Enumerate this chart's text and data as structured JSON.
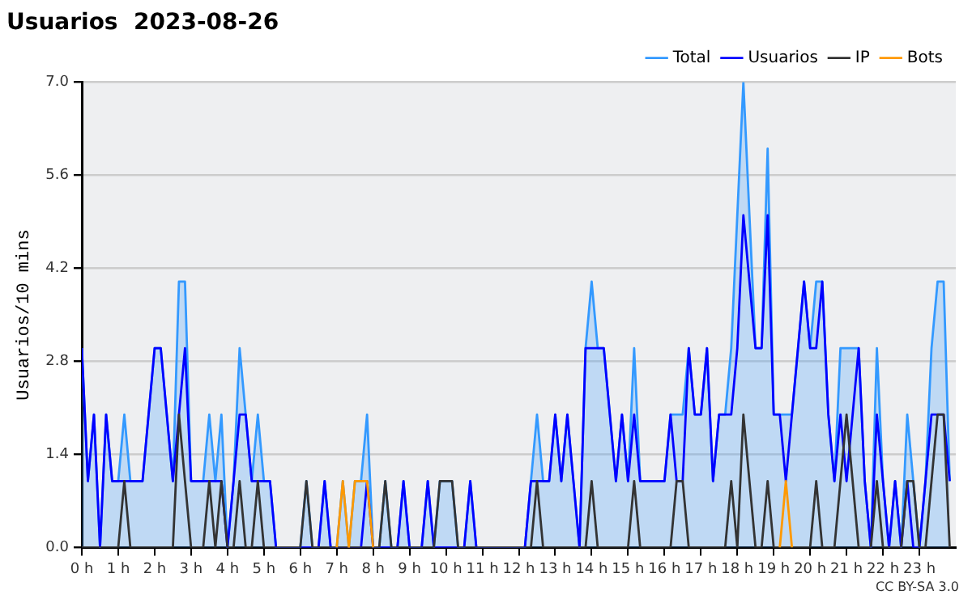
{
  "chart_data": {
    "type": "line",
    "title": "Usuarios  2023-08-26",
    "ylabel": "Usuarios/10 mins",
    "annotations": [
      "CC BY-SA 3.0"
    ],
    "x": [
      0,
      0.167,
      0.333,
      0.5,
      0.667,
      0.833,
      1,
      1.167,
      1.333,
      1.5,
      1.667,
      1.833,
      2,
      2.167,
      2.333,
      2.5,
      2.667,
      2.833,
      3,
      3.167,
      3.333,
      3.5,
      3.667,
      3.833,
      4,
      4.167,
      4.333,
      4.5,
      4.667,
      4.833,
      5,
      5.167,
      5.333,
      5.5,
      5.667,
      5.833,
      6,
      6.167,
      6.333,
      6.5,
      6.667,
      6.833,
      7,
      7.167,
      7.333,
      7.5,
      7.667,
      7.833,
      8,
      8.167,
      8.333,
      8.5,
      8.667,
      8.833,
      9,
      9.167,
      9.333,
      9.5,
      9.667,
      9.833,
      10,
      10.167,
      10.333,
      10.5,
      10.667,
      10.833,
      11,
      11.167,
      11.333,
      11.5,
      11.667,
      11.833,
      12,
      12.167,
      12.333,
      12.5,
      12.667,
      12.833,
      13,
      13.167,
      13.333,
      13.5,
      13.667,
      13.833,
      14,
      14.167,
      14.333,
      14.5,
      14.667,
      14.833,
      15,
      15.167,
      15.333,
      15.5,
      15.667,
      15.833,
      16,
      16.167,
      16.333,
      16.5,
      16.667,
      16.833,
      17,
      17.167,
      17.333,
      17.5,
      17.667,
      17.833,
      18,
      18.167,
      18.333,
      18.5,
      18.667,
      18.833,
      19,
      19.167,
      19.333,
      19.5,
      19.667,
      19.833,
      20,
      20.167,
      20.333,
      20.5,
      20.667,
      20.833,
      21,
      21.167,
      21.333,
      21.5,
      21.667,
      21.833,
      22,
      22.167,
      22.333,
      22.5,
      22.667,
      22.833,
      23,
      23.167,
      23.333,
      23.5,
      23.667,
      23.833
    ],
    "series": [
      {
        "name": "Total",
        "type": "area",
        "color": "#3399ff",
        "values": [
          3,
          1,
          2,
          0,
          2,
          1,
          1,
          2,
          1,
          1,
          1,
          2,
          3,
          3,
          2,
          1,
          4,
          4,
          1,
          1,
          1,
          2,
          1,
          2,
          0,
          1,
          3,
          2,
          1,
          2,
          1,
          1,
          0,
          0,
          0,
          0,
          0,
          1,
          0,
          0,
          1,
          0,
          0,
          1,
          0,
          1,
          1,
          2,
          0,
          0,
          1,
          0,
          0,
          1,
          0,
          0,
          0,
          1,
          0,
          1,
          1,
          1,
          0,
          0,
          1,
          0,
          0,
          0,
          0,
          0,
          0,
          0,
          0,
          0,
          1,
          2,
          1,
          1,
          2,
          1,
          2,
          1,
          0,
          3,
          4,
          3,
          3,
          2,
          1,
          2,
          1,
          3,
          1,
          1,
          1,
          1,
          1,
          2,
          2,
          2,
          3,
          2,
          2,
          3,
          1,
          2,
          2,
          3,
          5,
          7,
          5,
          3,
          3,
          6,
          2,
          2,
          2,
          2,
          3,
          4,
          3,
          4,
          4,
          2,
          1,
          3,
          3,
          3,
          3,
          1,
          0,
          3,
          1,
          0,
          1,
          0,
          2,
          1,
          0,
          1,
          3,
          4,
          4,
          1
        ]
      },
      {
        "name": "Usuarios",
        "type": "line",
        "color": "#0000ff",
        "values": [
          3,
          1,
          2,
          0,
          2,
          1,
          1,
          1,
          1,
          1,
          1,
          2,
          3,
          3,
          2,
          1,
          2,
          3,
          1,
          1,
          1,
          1,
          1,
          1,
          0,
          1,
          2,
          2,
          1,
          1,
          1,
          1,
          0,
          0,
          0,
          0,
          0,
          0,
          0,
          0,
          1,
          0,
          0,
          0,
          0,
          0,
          0,
          1,
          0,
          0,
          0,
          0,
          0,
          1,
          0,
          0,
          0,
          1,
          0,
          0,
          0,
          0,
          0,
          0,
          1,
          0,
          0,
          0,
          0,
          0,
          0,
          0,
          0,
          0,
          1,
          1,
          1,
          1,
          2,
          1,
          2,
          1,
          0,
          3,
          3,
          3,
          3,
          2,
          1,
          2,
          1,
          2,
          1,
          1,
          1,
          1,
          1,
          2,
          1,
          1,
          3,
          2,
          2,
          3,
          1,
          2,
          2,
          2,
          3,
          5,
          4,
          3,
          3,
          5,
          2,
          2,
          1,
          2,
          3,
          4,
          3,
          3,
          4,
          2,
          1,
          2,
          1,
          2,
          3,
          1,
          0,
          2,
          1,
          0,
          1,
          0,
          1,
          0,
          0,
          1,
          2,
          2,
          2,
          1
        ]
      },
      {
        "name": "IP",
        "type": "line",
        "color": "#333333",
        "values": [
          0,
          0,
          0,
          0,
          0,
          0,
          0,
          1,
          0,
          0,
          0,
          0,
          0,
          0,
          0,
          0,
          2,
          1,
          0,
          0,
          0,
          1,
          0,
          1,
          0,
          0,
          1,
          0,
          0,
          1,
          0,
          0,
          0,
          0,
          0,
          0,
          0,
          1,
          0,
          0,
          0,
          0,
          0,
          0,
          0,
          0,
          0,
          0,
          0,
          0,
          1,
          0,
          0,
          0,
          0,
          0,
          0,
          0,
          0,
          1,
          1,
          1,
          0,
          0,
          0,
          0,
          0,
          0,
          0,
          0,
          0,
          0,
          0,
          0,
          0,
          1,
          0,
          0,
          0,
          0,
          0,
          0,
          0,
          0,
          1,
          0,
          0,
          0,
          0,
          0,
          0,
          1,
          0,
          0,
          0,
          0,
          0,
          0,
          1,
          1,
          0,
          0,
          0,
          0,
          0,
          0,
          0,
          1,
          0,
          2,
          1,
          0,
          0,
          1,
          0,
          0,
          0,
          0,
          0,
          0,
          0,
          1,
          0,
          0,
          0,
          1,
          2,
          1,
          0,
          0,
          0,
          1,
          0,
          0,
          0,
          0,
          1,
          1,
          0,
          0,
          1,
          2,
          2,
          0
        ]
      },
      {
        "name": "Bots",
        "type": "line",
        "color": "#ff9900",
        "values": [
          null,
          null,
          null,
          null,
          null,
          null,
          null,
          null,
          null,
          null,
          null,
          null,
          null,
          null,
          null,
          null,
          null,
          null,
          null,
          null,
          null,
          null,
          null,
          null,
          null,
          null,
          null,
          null,
          null,
          null,
          null,
          null,
          null,
          null,
          null,
          null,
          null,
          null,
          null,
          null,
          null,
          null,
          0,
          1,
          0,
          1,
          1,
          1,
          0,
          null,
          null,
          null,
          null,
          null,
          null,
          null,
          null,
          null,
          null,
          null,
          null,
          null,
          null,
          null,
          null,
          null,
          null,
          null,
          null,
          null,
          null,
          null,
          null,
          null,
          null,
          null,
          null,
          null,
          null,
          null,
          null,
          null,
          null,
          null,
          null,
          null,
          null,
          null,
          null,
          null,
          null,
          null,
          null,
          null,
          null,
          null,
          null,
          null,
          null,
          null,
          null,
          null,
          null,
          null,
          null,
          null,
          null,
          null,
          null,
          null,
          null,
          null,
          null,
          null,
          null,
          0,
          1,
          0,
          null,
          null,
          null,
          null,
          null,
          null,
          null,
          null,
          null,
          null,
          null,
          null,
          null,
          null,
          null,
          null,
          null,
          null,
          null,
          null,
          null,
          null,
          null,
          null,
          null,
          null
        ]
      }
    ],
    "xlim": [
      0,
      24
    ],
    "xticks": [
      {
        "value": 0,
        "label": "0 h"
      },
      {
        "value": 1,
        "label": "1 h"
      },
      {
        "value": 2,
        "label": "2 h"
      },
      {
        "value": 3,
        "label": "3 h"
      },
      {
        "value": 4,
        "label": "4 h"
      },
      {
        "value": 5,
        "label": "5 h"
      },
      {
        "value": 6,
        "label": "6 h"
      },
      {
        "value": 7,
        "label": "7 h"
      },
      {
        "value": 8,
        "label": "8 h"
      },
      {
        "value": 9,
        "label": "9 h"
      },
      {
        "value": 10,
        "label": "10 h"
      },
      {
        "value": 11,
        "label": "11 h"
      },
      {
        "value": 12,
        "label": "12 h"
      },
      {
        "value": 13,
        "label": "13 h"
      },
      {
        "value": 14,
        "label": "14 h"
      },
      {
        "value": 15,
        "label": "15 h"
      },
      {
        "value": 16,
        "label": "16 h"
      },
      {
        "value": 17,
        "label": "17 h"
      },
      {
        "value": 18,
        "label": "18 h"
      },
      {
        "value": 19,
        "label": "19 h"
      },
      {
        "value": 20,
        "label": "20 h"
      },
      {
        "value": 21,
        "label": "21 h"
      },
      {
        "value": 22,
        "label": "22 h"
      },
      {
        "value": 23,
        "label": "23 h"
      }
    ],
    "ylim": [
      0,
      7
    ],
    "yticks": [
      {
        "value": 0,
        "label": "0.0"
      },
      1.4,
      2.8,
      4.2,
      5.6,
      {
        "value": 7,
        "label": "7.0"
      }
    ],
    "grid": "y",
    "legend": "top right",
    "marker": "none",
    "line_style": "solid"
  }
}
